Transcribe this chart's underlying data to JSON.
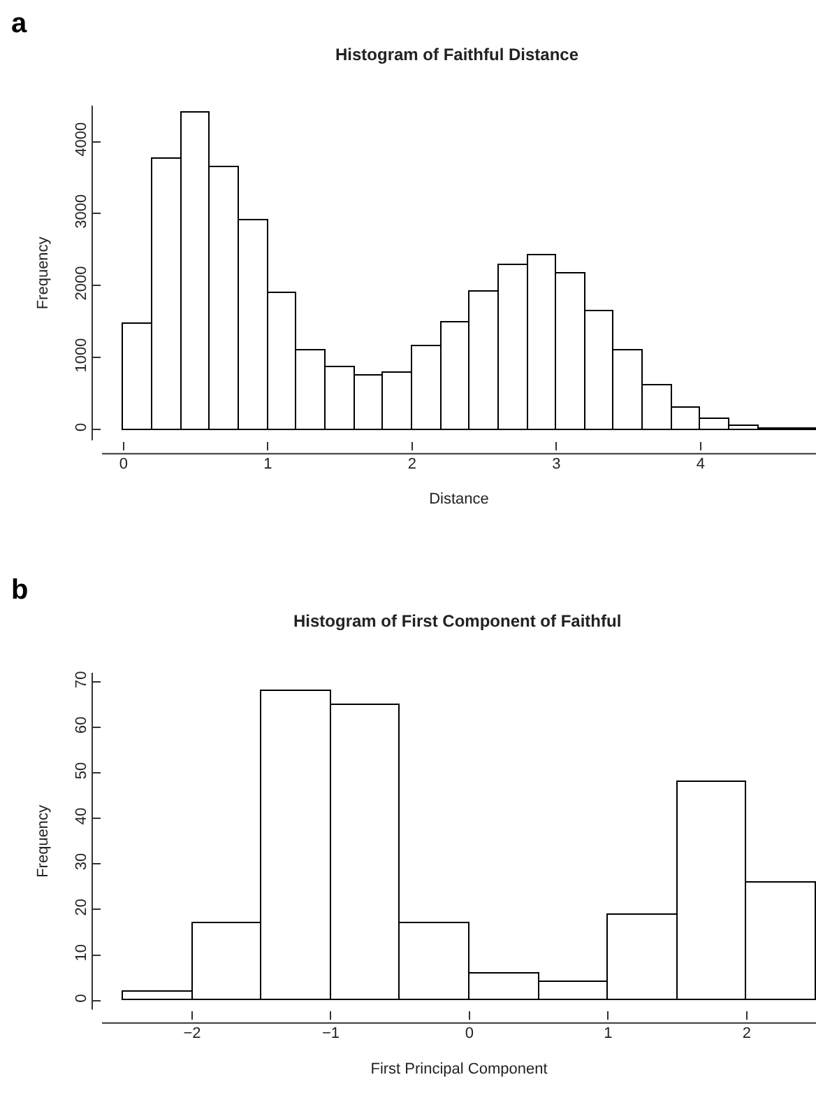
{
  "chart_data": [
    {
      "type": "histogram",
      "title": "Histogram of Faithful Distance",
      "xlabel": "Distance",
      "ylabel": "Frequency",
      "annotations": [
        "a"
      ],
      "bins": [
        0,
        0.2,
        0.4,
        0.6,
        0.8,
        1.0,
        1.2,
        1.4,
        1.6,
        1.8,
        2.0,
        2.2,
        2.4,
        2.6,
        2.8,
        3.0,
        3.2,
        3.4,
        3.6,
        3.8,
        4.0,
        4.2,
        4.4,
        4.6,
        4.8
      ],
      "values": [
        1460,
        3760,
        4400,
        3650,
        2900,
        1890,
        1100,
        870,
        740,
        790,
        1160,
        1490,
        1920,
        2290,
        2420,
        2170,
        1640,
        1090,
        620,
        300,
        150,
        50,
        20,
        10
      ],
      "color": "#ffffff",
      "xlim": [
        -0.15,
        4.8
      ],
      "ylim": [
        -150,
        4500
      ],
      "xticks": [
        0,
        1,
        2,
        3,
        4
      ],
      "yticks": [
        0,
        1000,
        2000,
        3000,
        4000
      ]
    },
    {
      "type": "histogram",
      "title": "Histogram of First Component of Faithful",
      "xlabel": "First Principal Component",
      "ylabel": "Frequency",
      "annotations": [
        "b"
      ],
      "bins": [
        -2.5,
        -2.0,
        -1.5,
        -1.0,
        -0.5,
        0,
        0.5,
        1.0,
        1.5,
        2.0,
        2.5
      ],
      "values": [
        2,
        17,
        68,
        65,
        17,
        6,
        4,
        19,
        48,
        26
      ],
      "color": "#ffffff",
      "xlim": [
        -2.65,
        2.5
      ],
      "ylim": [
        -2,
        72
      ],
      "xticks": [
        {
          "value": -2,
          "label": "−2"
        },
        {
          "value": -1,
          "label": "−1"
        },
        0,
        1,
        2
      ],
      "yticks": [
        0,
        10,
        20,
        30,
        40,
        50,
        60,
        70
      ]
    }
  ]
}
